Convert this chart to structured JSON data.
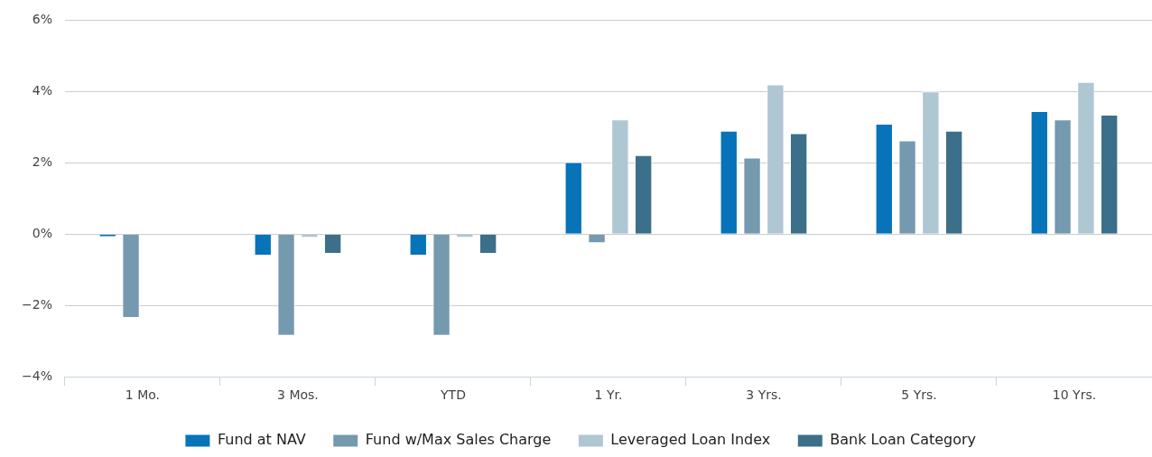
{
  "chart_data": {
    "type": "bar",
    "categories": [
      "1 Mo.",
      "3 Mos.",
      "YTD",
      "1 Yr.",
      "3 Yrs.",
      "5 Yrs.",
      "10 Yrs."
    ],
    "series": [
      {
        "name": "Fund at NAV",
        "color": "#0773b9",
        "values": [
          -0.08,
          -0.6,
          -0.6,
          2.02,
          2.9,
          3.1,
          3.45
        ]
      },
      {
        "name": "Fund w/Max Sales Charge",
        "color": "#7599ae",
        "values": [
          -2.35,
          -2.85,
          -2.85,
          -0.25,
          2.15,
          2.63,
          3.22
        ]
      },
      {
        "name": "Leveraged Loan Index",
        "color": "#afc6d3",
        "values": [
          -0.02,
          -0.1,
          -0.1,
          3.22,
          4.2,
          4.0,
          4.27
        ]
      },
      {
        "name": "Bank Loan Category",
        "color": "#3c6f89",
        "values": [
          0,
          -0.55,
          -0.55,
          2.22,
          2.83,
          2.9,
          3.35
        ]
      }
    ],
    "ylim": [
      -4,
      6
    ],
    "yticks": [
      {
        "value": -4,
        "label": "−4%"
      },
      {
        "value": -2,
        "label": "−2%"
      },
      {
        "value": 0,
        "label": "0%"
      },
      {
        "value": 2,
        "label": "2%"
      },
      {
        "value": 4,
        "label": "4%"
      },
      {
        "value": 6,
        "label": "6%"
      }
    ],
    "grid": "y",
    "legend": "bottom"
  }
}
